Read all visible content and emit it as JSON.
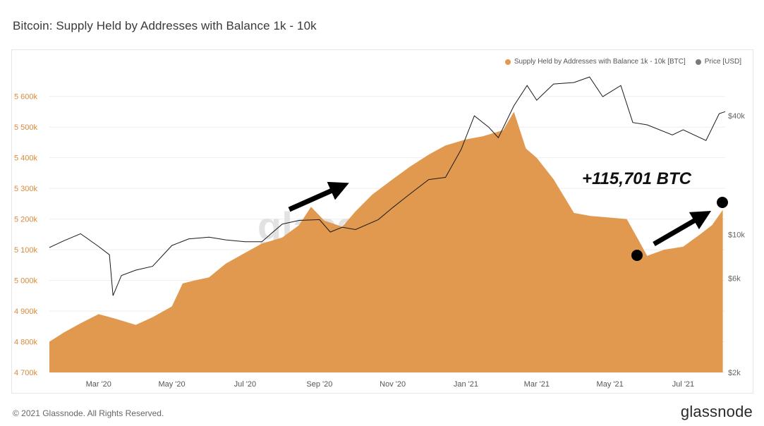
{
  "title": "Bitcoin: Supply Held by Addresses with Balance 1k - 10k",
  "footer": {
    "copyright": "© 2021 Glassnode. All Rights Reserved.",
    "logo": "glassnode"
  },
  "watermark": "glass",
  "colors": {
    "supply": "#e0994e",
    "price": "#1a1a1a",
    "legend_price": "#7a7a7a",
    "grid": "#eeeeee"
  },
  "legend": {
    "supply_label": "Supply Held by Addresses with Balance 1k - 10k [BTC]",
    "price_label": "Price [USD]"
  },
  "annotation": {
    "text": "+115,701 BTC"
  },
  "chart_data": {
    "type": "area",
    "x_axis": {
      "start": "2020-01-20",
      "end": "2021-08-05",
      "tick_labels": [
        "Mar '20",
        "May '20",
        "Jul '20",
        "Sep '20",
        "Nov '20",
        "Jan '21",
        "Mar '21",
        "May '21",
        "Jul '21"
      ],
      "tick_dates": [
        "2020-03-01",
        "2020-05-01",
        "2020-07-01",
        "2020-09-01",
        "2020-11-01",
        "2021-01-01",
        "2021-03-01",
        "2021-05-01",
        "2021-07-01"
      ]
    },
    "y_left": {
      "unit": "BTC",
      "ylim": [
        4700000,
        5650000
      ],
      "ticks": [
        4700000,
        4800000,
        4900000,
        5000000,
        5100000,
        5200000,
        5300000,
        5400000,
        5500000,
        5600000
      ],
      "tick_labels": [
        "4 700k",
        "4 800k",
        "4 900k",
        "5 000k",
        "5 100k",
        "5 200k",
        "5 300k",
        "5 400k",
        "5 500k",
        "5 600k"
      ]
    },
    "y_right": {
      "unit": "USD",
      "scale": "log",
      "ylim": [
        2000,
        60000
      ],
      "ticks": [
        2000,
        6000,
        10000,
        40000
      ],
      "tick_labels": [
        "$2k",
        "$6k",
        "$10k",
        "$40k"
      ]
    },
    "series": [
      {
        "name": "Supply Held by Addresses with Balance 1k - 10k [BTC]",
        "axis": "left",
        "style": "area",
        "points": [
          [
            "2020-01-20",
            4800000
          ],
          [
            "2020-02-01",
            4830000
          ],
          [
            "2020-02-15",
            4860000
          ],
          [
            "2020-03-01",
            4890000
          ],
          [
            "2020-03-15",
            4875000
          ],
          [
            "2020-04-01",
            4855000
          ],
          [
            "2020-04-15",
            4880000
          ],
          [
            "2020-05-01",
            4915000
          ],
          [
            "2020-05-10",
            4990000
          ],
          [
            "2020-05-20",
            5000000
          ],
          [
            "2020-06-01",
            5010000
          ],
          [
            "2020-06-15",
            5055000
          ],
          [
            "2020-07-01",
            5090000
          ],
          [
            "2020-07-15",
            5120000
          ],
          [
            "2020-08-01",
            5140000
          ],
          [
            "2020-08-15",
            5180000
          ],
          [
            "2020-08-25",
            5240000
          ],
          [
            "2020-09-05",
            5195000
          ],
          [
            "2020-09-20",
            5175000
          ],
          [
            "2020-10-01",
            5225000
          ],
          [
            "2020-10-15",
            5280000
          ],
          [
            "2020-11-01",
            5330000
          ],
          [
            "2020-11-15",
            5370000
          ],
          [
            "2020-12-01",
            5410000
          ],
          [
            "2020-12-15",
            5440000
          ],
          [
            "2021-01-01",
            5460000
          ],
          [
            "2021-01-15",
            5470000
          ],
          [
            "2021-02-01",
            5490000
          ],
          [
            "2021-02-10",
            5550000
          ],
          [
            "2021-02-20",
            5430000
          ],
          [
            "2021-03-01",
            5400000
          ],
          [
            "2021-03-15",
            5330000
          ],
          [
            "2021-04-01",
            5220000
          ],
          [
            "2021-04-15",
            5210000
          ],
          [
            "2021-05-01",
            5205000
          ],
          [
            "2021-05-15",
            5200000
          ],
          [
            "2021-05-25",
            5130000
          ],
          [
            "2021-06-01",
            5080000
          ],
          [
            "2021-06-15",
            5100000
          ],
          [
            "2021-07-01",
            5110000
          ],
          [
            "2021-07-15",
            5150000
          ],
          [
            "2021-07-25",
            5180000
          ],
          [
            "2021-08-03",
            5230000
          ]
        ]
      },
      {
        "name": "Price [USD]",
        "axis": "right",
        "style": "line",
        "points": [
          [
            "2020-01-20",
            8600
          ],
          [
            "2020-02-01",
            9300
          ],
          [
            "2020-02-15",
            10100
          ],
          [
            "2020-03-01",
            8700
          ],
          [
            "2020-03-10",
            7900
          ],
          [
            "2020-03-13",
            4900
          ],
          [
            "2020-03-20",
            6200
          ],
          [
            "2020-04-01",
            6600
          ],
          [
            "2020-04-15",
            6900
          ],
          [
            "2020-05-01",
            8800
          ],
          [
            "2020-05-15",
            9500
          ],
          [
            "2020-06-01",
            9700
          ],
          [
            "2020-06-15",
            9400
          ],
          [
            "2020-07-01",
            9200
          ],
          [
            "2020-07-15",
            9200
          ],
          [
            "2020-08-01",
            11300
          ],
          [
            "2020-08-15",
            11800
          ],
          [
            "2020-09-01",
            11900
          ],
          [
            "2020-09-10",
            10300
          ],
          [
            "2020-09-20",
            10900
          ],
          [
            "2020-10-01",
            10600
          ],
          [
            "2020-10-20",
            11900
          ],
          [
            "2020-11-01",
            13700
          ],
          [
            "2020-11-15",
            16000
          ],
          [
            "2020-12-01",
            19000
          ],
          [
            "2020-12-15",
            19500
          ],
          [
            "2020-12-28",
            27000
          ],
          [
            "2021-01-08",
            40000
          ],
          [
            "2021-01-20",
            35000
          ],
          [
            "2021-01-28",
            31000
          ],
          [
            "2021-02-10",
            45000
          ],
          [
            "2021-02-21",
            57000
          ],
          [
            "2021-03-01",
            48000
          ],
          [
            "2021-03-15",
            58000
          ],
          [
            "2021-04-01",
            59000
          ],
          [
            "2021-04-14",
            63000
          ],
          [
            "2021-04-25",
            50000
          ],
          [
            "2021-05-10",
            57000
          ],
          [
            "2021-05-20",
            37000
          ],
          [
            "2021-06-01",
            36000
          ],
          [
            "2021-06-22",
            32000
          ],
          [
            "2021-07-01",
            34000
          ],
          [
            "2021-07-20",
            30000
          ],
          [
            "2021-07-31",
            41000
          ],
          [
            "2021-08-05",
            42000
          ]
        ]
      }
    ]
  }
}
